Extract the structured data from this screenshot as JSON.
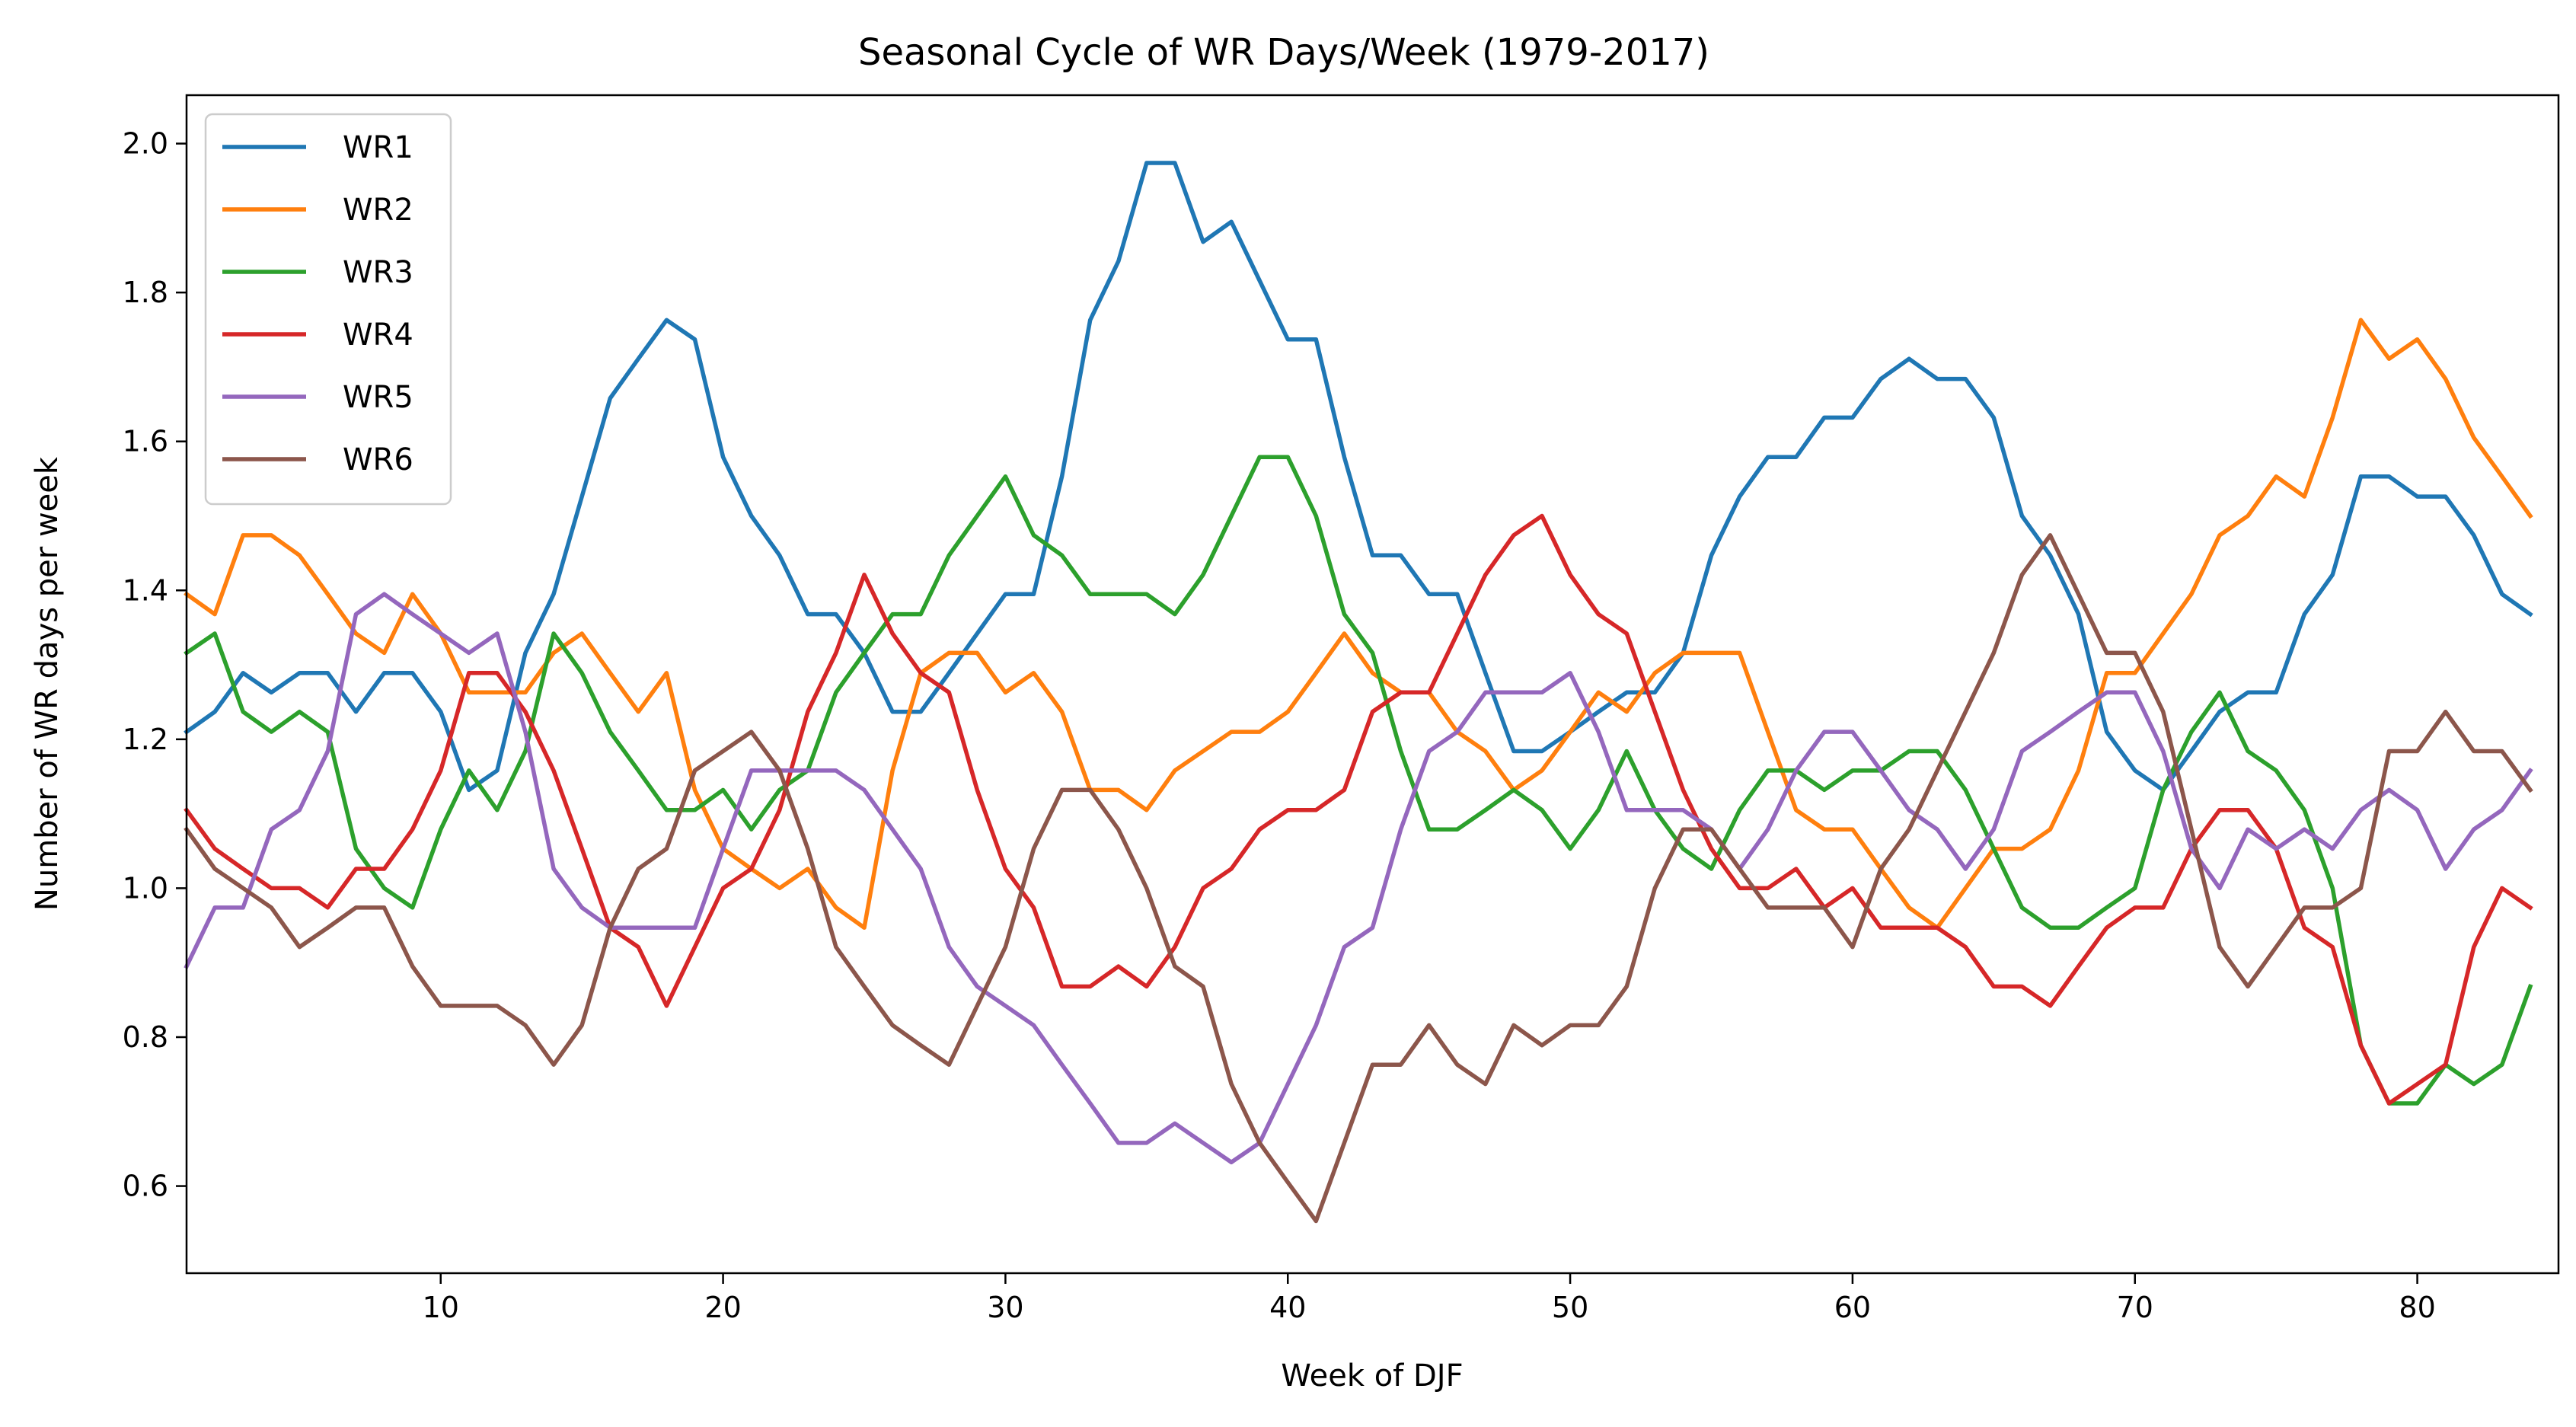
{
  "chart_data": {
    "type": "line",
    "title": "Seasonal Cycle of WR Days/Week (1979-2017)",
    "xlabel": "Week of DJF",
    "ylabel": "Number of WR days per week",
    "xlim": [
      1,
      85
    ],
    "ylim": [
      0.483,
      2.065
    ],
    "xticks": [
      10,
      20,
      30,
      40,
      50,
      60,
      70,
      80
    ],
    "yticks": [
      0.6,
      0.8,
      1.0,
      1.2,
      1.4,
      1.6,
      1.8,
      2.0
    ],
    "ytick_labels": [
      "0.6",
      "0.8",
      "1.0",
      "1.2",
      "1.4",
      "1.6",
      "1.8",
      "2.0"
    ],
    "grid": false,
    "legend_position": "top-left",
    "x_start": 1,
    "series": [
      {
        "name": "WR1",
        "color": "#1f77b4",
        "values": [
          1.21,
          1.237,
          1.289,
          1.263,
          1.289,
          1.289,
          1.237,
          1.289,
          1.289,
          1.237,
          1.132,
          1.158,
          1.316,
          1.395,
          1.526,
          1.658,
          1.711,
          1.763,
          1.737,
          1.579,
          1.5,
          1.447,
          1.368,
          1.368,
          1.316,
          1.237,
          1.237,
          1.289,
          1.342,
          1.395,
          1.395,
          1.553,
          1.763,
          1.842,
          1.974,
          1.974,
          1.868,
          1.895,
          1.816,
          1.737,
          1.737,
          1.579,
          1.447,
          1.447,
          1.395,
          1.395,
          1.289,
          1.184,
          1.184,
          1.21,
          1.237,
          1.263,
          1.263,
          1.316,
          1.447,
          1.526,
          1.579,
          1.579,
          1.632,
          1.632,
          1.684,
          1.711,
          1.684,
          1.684,
          1.632,
          1.5,
          1.447,
          1.368,
          1.21,
          1.158,
          1.132,
          1.184,
          1.237,
          1.263,
          1.263,
          1.368,
          1.421,
          1.553,
          1.553,
          1.526,
          1.526,
          1.474,
          1.395,
          1.368
        ]
      },
      {
        "name": "WR2",
        "color": "#ff7f0e",
        "values": [
          1.395,
          1.368,
          1.474,
          1.474,
          1.447,
          1.395,
          1.342,
          1.316,
          1.395,
          1.342,
          1.263,
          1.263,
          1.263,
          1.316,
          1.342,
          1.289,
          1.237,
          1.289,
          1.132,
          1.053,
          1.026,
          1.0,
          1.026,
          0.974,
          0.947,
          1.158,
          1.289,
          1.316,
          1.316,
          1.263,
          1.289,
          1.237,
          1.132,
          1.132,
          1.105,
          1.158,
          1.184,
          1.21,
          1.21,
          1.237,
          1.289,
          1.342,
          1.289,
          1.263,
          1.263,
          1.21,
          1.184,
          1.132,
          1.158,
          1.21,
          1.263,
          1.237,
          1.289,
          1.316,
          1.316,
          1.316,
          1.21,
          1.105,
          1.079,
          1.079,
          1.026,
          0.974,
          0.947,
          1.0,
          1.053,
          1.053,
          1.079,
          1.158,
          1.289,
          1.289,
          1.342,
          1.395,
          1.474,
          1.5,
          1.553,
          1.526,
          1.632,
          1.763,
          1.711,
          1.737,
          1.684,
          1.605,
          1.553,
          1.5
        ]
      },
      {
        "name": "WR3",
        "color": "#2ca02c",
        "values": [
          1.316,
          1.342,
          1.237,
          1.21,
          1.237,
          1.21,
          1.053,
          1.0,
          0.974,
          1.079,
          1.158,
          1.105,
          1.184,
          1.342,
          1.289,
          1.21,
          1.158,
          1.105,
          1.105,
          1.132,
          1.079,
          1.132,
          1.158,
          1.263,
          1.316,
          1.368,
          1.368,
          1.447,
          1.5,
          1.553,
          1.474,
          1.447,
          1.395,
          1.395,
          1.395,
          1.368,
          1.421,
          1.5,
          1.579,
          1.579,
          1.5,
          1.368,
          1.316,
          1.184,
          1.079,
          1.079,
          1.105,
          1.132,
          1.105,
          1.053,
          1.105,
          1.184,
          1.105,
          1.053,
          1.026,
          1.105,
          1.158,
          1.158,
          1.132,
          1.158,
          1.158,
          1.184,
          1.184,
          1.132,
          1.053,
          0.974,
          0.947,
          0.947,
          0.974,
          1.0,
          1.132,
          1.21,
          1.263,
          1.184,
          1.158,
          1.105,
          1.0,
          0.789,
          0.711,
          0.711,
          0.763,
          0.737,
          0.763,
          0.868
        ]
      },
      {
        "name": "WR4",
        "color": "#d62728",
        "values": [
          1.105,
          1.053,
          1.026,
          1.0,
          1.0,
          0.974,
          1.026,
          1.026,
          1.079,
          1.158,
          1.289,
          1.289,
          1.237,
          1.158,
          1.053,
          0.947,
          0.921,
          0.842,
          0.921,
          1.0,
          1.026,
          1.105,
          1.237,
          1.316,
          1.421,
          1.342,
          1.289,
          1.263,
          1.132,
          1.026,
          0.974,
          0.868,
          0.868,
          0.895,
          0.868,
          0.921,
          1.0,
          1.026,
          1.079,
          1.105,
          1.105,
          1.132,
          1.237,
          1.263,
          1.263,
          1.342,
          1.421,
          1.474,
          1.5,
          1.421,
          1.368,
          1.342,
          1.237,
          1.132,
          1.053,
          1.0,
          1.0,
          1.026,
          0.974,
          1.0,
          0.947,
          0.947,
          0.947,
          0.921,
          0.868,
          0.868,
          0.842,
          0.895,
          0.947,
          0.974,
          0.974,
          1.053,
          1.105,
          1.105,
          1.053,
          0.947,
          0.921,
          0.789,
          0.711,
          0.737,
          0.763,
          0.921,
          1.0,
          0.974
        ]
      },
      {
        "name": "WR5",
        "color": "#9467bd",
        "values": [
          0.895,
          0.974,
          0.974,
          1.079,
          1.105,
          1.184,
          1.368,
          1.395,
          1.368,
          1.342,
          1.316,
          1.342,
          1.21,
          1.026,
          0.974,
          0.947,
          0.947,
          0.947,
          0.947,
          1.053,
          1.158,
          1.158,
          1.158,
          1.158,
          1.132,
          1.079,
          1.026,
          0.921,
          0.868,
          0.842,
          0.816,
          0.763,
          0.711,
          0.658,
          0.658,
          0.684,
          0.658,
          0.632,
          0.658,
          0.737,
          0.816,
          0.921,
          0.947,
          1.079,
          1.184,
          1.21,
          1.263,
          1.263,
          1.263,
          1.289,
          1.21,
          1.105,
          1.105,
          1.105,
          1.079,
          1.026,
          1.079,
          1.158,
          1.21,
          1.21,
          1.158,
          1.105,
          1.079,
          1.026,
          1.079,
          1.184,
          1.21,
          1.237,
          1.263,
          1.263,
          1.184,
          1.053,
          1.0,
          1.079,
          1.053,
          1.079,
          1.053,
          1.105,
          1.132,
          1.105,
          1.026,
          1.079,
          1.105,
          1.158
        ]
      },
      {
        "name": "WR6",
        "color": "#8c564b",
        "values": [
          1.079,
          1.026,
          1.0,
          0.974,
          0.921,
          0.947,
          0.974,
          0.974,
          0.895,
          0.842,
          0.842,
          0.842,
          0.816,
          0.763,
          0.816,
          0.947,
          1.026,
          1.053,
          1.158,
          1.184,
          1.21,
          1.158,
          1.053,
          0.921,
          0.868,
          0.816,
          0.789,
          0.763,
          0.842,
          0.921,
          1.053,
          1.132,
          1.132,
          1.079,
          1.0,
          0.895,
          0.868,
          0.737,
          0.658,
          0.605,
          0.553,
          0.658,
          0.763,
          0.763,
          0.816,
          0.763,
          0.737,
          0.816,
          0.789,
          0.816,
          0.816,
          0.868,
          1.0,
          1.079,
          1.079,
          1.026,
          0.974,
          0.974,
          0.974,
          0.921,
          1.026,
          1.079,
          1.158,
          1.237,
          1.316,
          1.421,
          1.474,
          1.395,
          1.316,
          1.316,
          1.237,
          1.079,
          0.921,
          0.868,
          0.921,
          0.974,
          0.974,
          1.0,
          1.184,
          1.184,
          1.237,
          1.184,
          1.184,
          1.132
        ]
      }
    ]
  }
}
